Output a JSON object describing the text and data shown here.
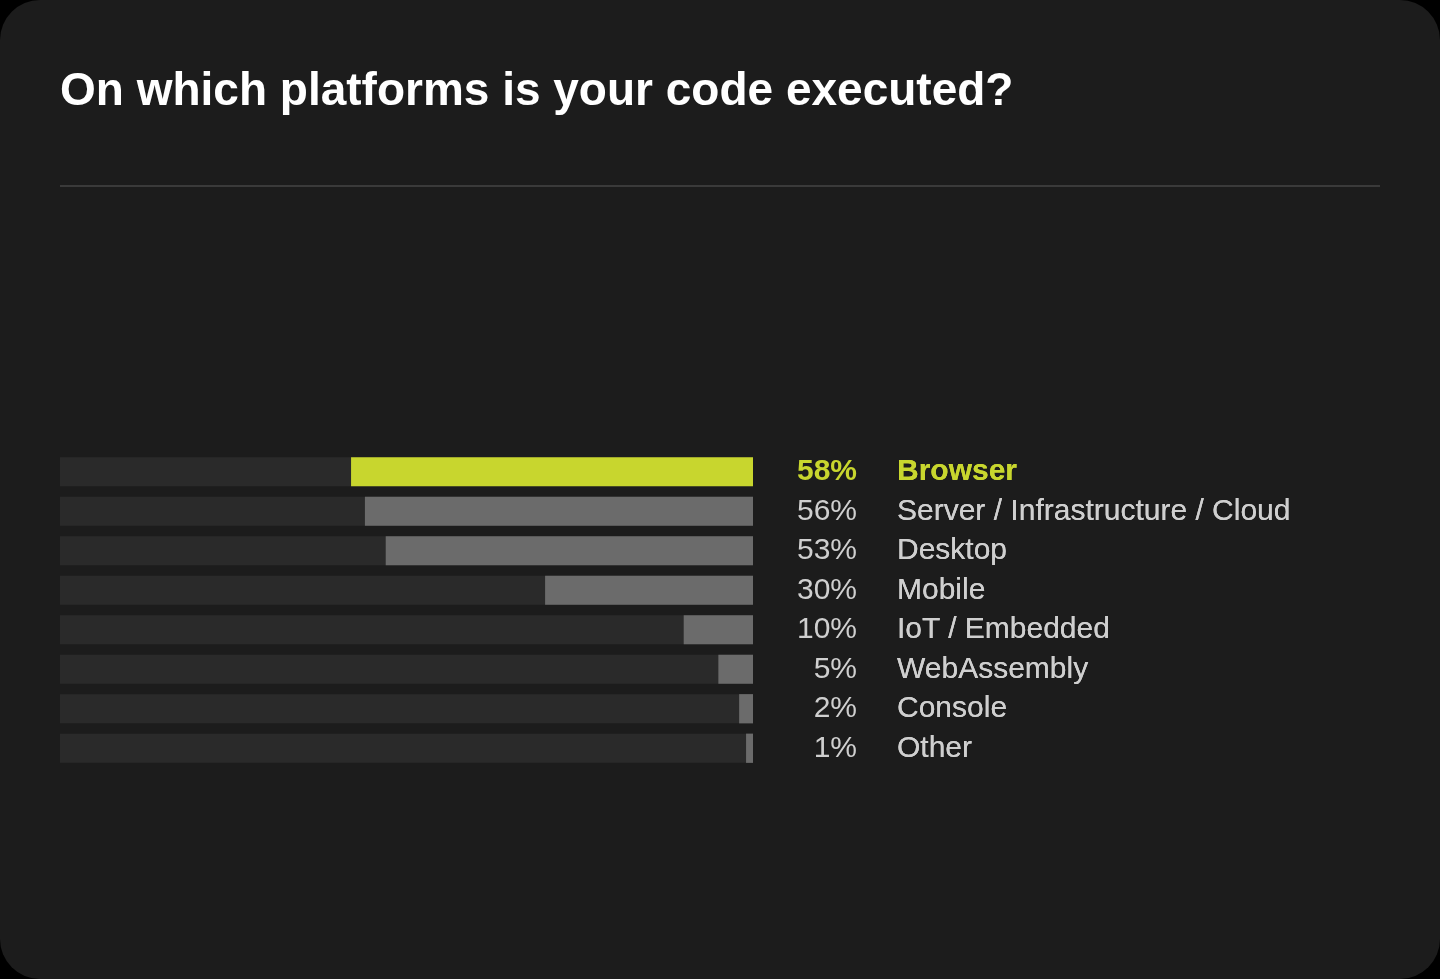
{
  "chart_data": {
    "type": "bar",
    "orientation": "horizontal",
    "title": "On which platforms is your code executed?",
    "categories": [
      "Browser",
      "Server / Infrastructure / Cloud",
      "Desktop",
      "Mobile",
      "IoT / Embedded",
      "WebAssembly",
      "Console",
      "Other"
    ],
    "values": [
      58,
      56,
      53,
      30,
      10,
      5,
      2,
      1
    ],
    "value_labels": [
      "58%",
      "56%",
      "53%",
      "30%",
      "10%",
      "5%",
      "2%",
      "1%"
    ],
    "colors": [
      "#c8d62e",
      "#6b6b6b",
      "#6b6b6b",
      "#6b6b6b",
      "#6b6b6b",
      "#6b6b6b",
      "#6b6b6b",
      "#6b6b6b"
    ],
    "xlim": [
      100,
      0
    ],
    "legend": false
  }
}
